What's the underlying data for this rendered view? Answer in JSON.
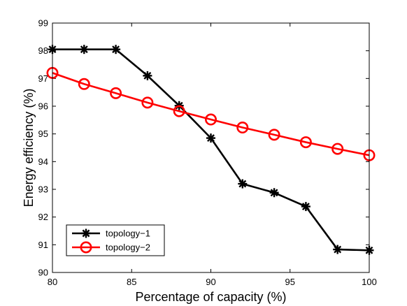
{
  "chart_data": {
    "type": "line",
    "xlabel": "Percentage of capacity (%)",
    "ylabel": "Energy efficiency (%)",
    "xlim": [
      80,
      100
    ],
    "ylim": [
      90,
      99
    ],
    "xticks": [
      80,
      85,
      90,
      95,
      100
    ],
    "yticks": [
      90,
      91,
      92,
      93,
      94,
      95,
      96,
      97,
      98,
      99
    ],
    "grid": false,
    "legend_position": "bottom-left",
    "series": [
      {
        "name": "topology−1",
        "color": "#000000",
        "marker": "asterisk",
        "x": [
          80,
          82,
          84,
          86,
          88,
          90,
          92,
          94,
          96,
          98,
          100
        ],
        "y": [
          98.05,
          98.05,
          98.05,
          97.1,
          96.02,
          94.85,
          93.2,
          92.88,
          92.38,
          90.83,
          90.8
        ]
      },
      {
        "name": "topology−2",
        "color": "#ff0000",
        "marker": "circle",
        "x": [
          80,
          82,
          84,
          86,
          88,
          90,
          92,
          94,
          96,
          98,
          100
        ],
        "y": [
          97.2,
          96.8,
          96.47,
          96.13,
          95.82,
          95.52,
          95.23,
          94.97,
          94.7,
          94.46,
          94.23
        ]
      }
    ]
  }
}
